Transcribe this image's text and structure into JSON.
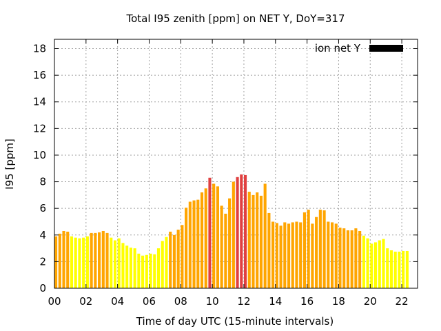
{
  "chart_data": {
    "type": "bar",
    "title": "Total I95 zenith [ppm] on NET Y, DoY=317",
    "xlabel": "Time of day UTC (15-minute intervals)",
    "ylabel": "I95 [ppm]",
    "ylim": [
      0,
      18.7
    ],
    "yticks": [
      0,
      2,
      4,
      6,
      8,
      10,
      12,
      14,
      16,
      18
    ],
    "xlim": [
      0,
      23
    ],
    "xticks": [
      {
        "value": 0,
        "label": "00"
      },
      {
        "value": 2,
        "label": "02"
      },
      {
        "value": 4,
        "label": "04"
      },
      {
        "value": 6,
        "label": "06"
      },
      {
        "value": 8,
        "label": "08"
      },
      {
        "value": 10,
        "label": "10"
      },
      {
        "value": 12,
        "label": "12"
      },
      {
        "value": 14,
        "label": "14"
      },
      {
        "value": 16,
        "label": "16"
      },
      {
        "value": 18,
        "label": "18"
      },
      {
        "value": 20,
        "label": "20"
      },
      {
        "value": 22,
        "label": "22"
      }
    ],
    "grid": true,
    "legend": {
      "label": "ion net Y",
      "position": "top-right",
      "color": "#000000"
    },
    "bar_width_hours": 0.18,
    "colors": {
      "low": "#ffff00",
      "mid": "#ffa500",
      "high": "#e04040"
    },
    "bars": [
      {
        "x": 0.0,
        "y": 3.9,
        "c": "mid"
      },
      {
        "x": 0.25,
        "y": 4.1,
        "c": "mid"
      },
      {
        "x": 0.5,
        "y": 4.3,
        "c": "mid"
      },
      {
        "x": 0.75,
        "y": 4.25,
        "c": "mid"
      },
      {
        "x": 1.0,
        "y": 3.9,
        "c": "low"
      },
      {
        "x": 1.25,
        "y": 3.8,
        "c": "low"
      },
      {
        "x": 1.5,
        "y": 3.75,
        "c": "low"
      },
      {
        "x": 1.75,
        "y": 3.8,
        "c": "low"
      },
      {
        "x": 2.0,
        "y": 3.9,
        "c": "low"
      },
      {
        "x": 2.25,
        "y": 4.15,
        "c": "mid"
      },
      {
        "x": 2.5,
        "y": 4.15,
        "c": "mid"
      },
      {
        "x": 2.75,
        "y": 4.2,
        "c": "mid"
      },
      {
        "x": 3.0,
        "y": 4.3,
        "c": "mid"
      },
      {
        "x": 3.25,
        "y": 4.15,
        "c": "mid"
      },
      {
        "x": 3.5,
        "y": 3.8,
        "c": "low"
      },
      {
        "x": 3.75,
        "y": 3.6,
        "c": "low"
      },
      {
        "x": 4.0,
        "y": 3.75,
        "c": "low"
      },
      {
        "x": 4.25,
        "y": 3.4,
        "c": "low"
      },
      {
        "x": 4.5,
        "y": 3.2,
        "c": "low"
      },
      {
        "x": 4.75,
        "y": 3.05,
        "c": "low"
      },
      {
        "x": 5.0,
        "y": 3.0,
        "c": "low"
      },
      {
        "x": 5.25,
        "y": 2.6,
        "c": "low"
      },
      {
        "x": 5.5,
        "y": 2.45,
        "c": "low"
      },
      {
        "x": 5.75,
        "y": 2.5,
        "c": "low"
      },
      {
        "x": 6.0,
        "y": 2.6,
        "c": "low"
      },
      {
        "x": 6.25,
        "y": 2.55,
        "c": "low"
      },
      {
        "x": 6.5,
        "y": 3.0,
        "c": "low"
      },
      {
        "x": 6.75,
        "y": 3.55,
        "c": "low"
      },
      {
        "x": 7.0,
        "y": 3.85,
        "c": "low"
      },
      {
        "x": 7.25,
        "y": 4.25,
        "c": "mid"
      },
      {
        "x": 7.5,
        "y": 4.0,
        "c": "mid"
      },
      {
        "x": 7.75,
        "y": 4.4,
        "c": "mid"
      },
      {
        "x": 8.0,
        "y": 4.75,
        "c": "mid"
      },
      {
        "x": 8.25,
        "y": 6.05,
        "c": "mid"
      },
      {
        "x": 8.5,
        "y": 6.5,
        "c": "mid"
      },
      {
        "x": 8.75,
        "y": 6.6,
        "c": "mid"
      },
      {
        "x": 9.0,
        "y": 6.65,
        "c": "mid"
      },
      {
        "x": 9.25,
        "y": 7.2,
        "c": "mid"
      },
      {
        "x": 9.5,
        "y": 7.5,
        "c": "mid"
      },
      {
        "x": 9.75,
        "y": 8.3,
        "c": "high"
      },
      {
        "x": 10.0,
        "y": 7.85,
        "c": "mid"
      },
      {
        "x": 10.25,
        "y": 7.65,
        "c": "mid"
      },
      {
        "x": 10.5,
        "y": 6.2,
        "c": "mid"
      },
      {
        "x": 10.75,
        "y": 5.6,
        "c": "mid"
      },
      {
        "x": 11.0,
        "y": 6.75,
        "c": "mid"
      },
      {
        "x": 11.25,
        "y": 8.0,
        "c": "mid"
      },
      {
        "x": 11.5,
        "y": 8.35,
        "c": "high"
      },
      {
        "x": 11.75,
        "y": 8.55,
        "c": "high"
      },
      {
        "x": 12.0,
        "y": 8.5,
        "c": "high"
      },
      {
        "x": 12.25,
        "y": 7.25,
        "c": "mid"
      },
      {
        "x": 12.5,
        "y": 7.0,
        "c": "mid"
      },
      {
        "x": 12.75,
        "y": 7.2,
        "c": "mid"
      },
      {
        "x": 13.0,
        "y": 6.95,
        "c": "mid"
      },
      {
        "x": 13.25,
        "y": 7.85,
        "c": "mid"
      },
      {
        "x": 13.5,
        "y": 5.65,
        "c": "mid"
      },
      {
        "x": 13.75,
        "y": 5.0,
        "c": "mid"
      },
      {
        "x": 14.0,
        "y": 4.9,
        "c": "mid"
      },
      {
        "x": 14.25,
        "y": 4.7,
        "c": "mid"
      },
      {
        "x": 14.5,
        "y": 4.95,
        "c": "mid"
      },
      {
        "x": 14.75,
        "y": 4.85,
        "c": "mid"
      },
      {
        "x": 15.0,
        "y": 4.95,
        "c": "mid"
      },
      {
        "x": 15.25,
        "y": 5.0,
        "c": "mid"
      },
      {
        "x": 15.5,
        "y": 4.95,
        "c": "mid"
      },
      {
        "x": 15.75,
        "y": 5.7,
        "c": "mid"
      },
      {
        "x": 16.0,
        "y": 5.9,
        "c": "mid"
      },
      {
        "x": 16.25,
        "y": 4.85,
        "c": "mid"
      },
      {
        "x": 16.5,
        "y": 5.35,
        "c": "mid"
      },
      {
        "x": 16.75,
        "y": 5.9,
        "c": "mid"
      },
      {
        "x": 17.0,
        "y": 5.85,
        "c": "mid"
      },
      {
        "x": 17.25,
        "y": 5.0,
        "c": "mid"
      },
      {
        "x": 17.5,
        "y": 4.95,
        "c": "mid"
      },
      {
        "x": 17.75,
        "y": 4.85,
        "c": "mid"
      },
      {
        "x": 18.0,
        "y": 4.55,
        "c": "mid"
      },
      {
        "x": 18.25,
        "y": 4.5,
        "c": "mid"
      },
      {
        "x": 18.5,
        "y": 4.35,
        "c": "mid"
      },
      {
        "x": 18.75,
        "y": 4.35,
        "c": "mid"
      },
      {
        "x": 19.0,
        "y": 4.5,
        "c": "mid"
      },
      {
        "x": 19.25,
        "y": 4.3,
        "c": "mid"
      },
      {
        "x": 19.5,
        "y": 3.95,
        "c": "low"
      },
      {
        "x": 19.75,
        "y": 3.75,
        "c": "low"
      },
      {
        "x": 20.0,
        "y": 3.35,
        "c": "low"
      },
      {
        "x": 20.25,
        "y": 3.45,
        "c": "low"
      },
      {
        "x": 20.5,
        "y": 3.6,
        "c": "low"
      },
      {
        "x": 20.75,
        "y": 3.7,
        "c": "low"
      },
      {
        "x": 21.0,
        "y": 3.0,
        "c": "low"
      },
      {
        "x": 21.25,
        "y": 2.85,
        "c": "low"
      },
      {
        "x": 21.5,
        "y": 2.75,
        "c": "low"
      },
      {
        "x": 21.75,
        "y": 2.75,
        "c": "low"
      },
      {
        "x": 22.0,
        "y": 2.8,
        "c": "low"
      },
      {
        "x": 22.25,
        "y": 2.8,
        "c": "low"
      }
    ]
  }
}
